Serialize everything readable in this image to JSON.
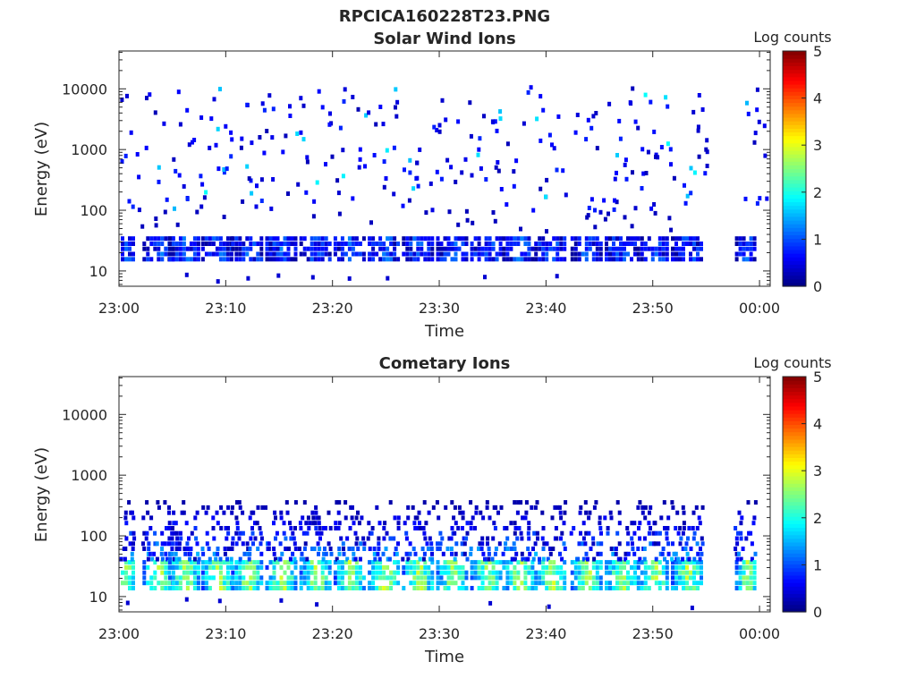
{
  "figure": {
    "title": "RPCICA160228T23.PNG"
  },
  "chart_data": [
    {
      "type": "heatmap",
      "title": "Solar Wind Ions",
      "xlabel": "Time",
      "ylabel": "Energy (eV)",
      "x_range": [
        "23:00",
        "00:01"
      ],
      "ylim": [
        5.6,
        42000
      ],
      "y_scale": "log",
      "x_ticks": [
        "23:00",
        "23:10",
        "23:20",
        "23:30",
        "23:40",
        "23:50",
        "00:00"
      ],
      "y_ticks": [
        {
          "value": 10,
          "label": "10"
        },
        {
          "value": 100,
          "label": "100"
        },
        {
          "value": 1000,
          "label": "1000"
        },
        {
          "value": 10000,
          "label": "10000"
        }
      ],
      "colorbar": {
        "label": "Log counts",
        "min": 0,
        "max": 5,
        "ticks": [
          "0",
          "1",
          "2",
          "3",
          "4",
          "5"
        ],
        "colormap": "jet"
      },
      "grid": false,
      "pattern": {
        "sweep_minutes": [
          0.5,
          3.7,
          6.1,
          9.2,
          12.0,
          15.2,
          18.4,
          21.6,
          24.8,
          28.0,
          31.2,
          34.4,
          37.4,
          40.4,
          43.8,
          47.0,
          50.0,
          53.2,
          58.7
        ],
        "low_energy_band_eV": [
          17,
          40
        ],
        "low_band_log_counts": 0.9,
        "sparse_high_energy_counts": true,
        "data_gap_minutes": [
          55.0,
          58.3
        ]
      }
    },
    {
      "type": "heatmap",
      "title": "Cometary Ions",
      "xlabel": "Time",
      "ylabel": "Energy (eV)",
      "x_range": [
        "23:00",
        "00:01"
      ],
      "ylim": [
        5.6,
        42000
      ],
      "y_scale": "log",
      "x_ticks": [
        "23:00",
        "23:10",
        "23:20",
        "23:30",
        "23:40",
        "23:50",
        "00:00"
      ],
      "y_ticks": [
        {
          "value": 10,
          "label": "10"
        },
        {
          "value": 100,
          "label": "100"
        },
        {
          "value": 1000,
          "label": "1000"
        },
        {
          "value": 10000,
          "label": "10000"
        }
      ],
      "colorbar": {
        "label": "Log counts",
        "min": 0,
        "max": 5,
        "ticks": [
          "0",
          "1",
          "2",
          "3",
          "4",
          "5"
        ],
        "colormap": "jet"
      },
      "grid": false,
      "pattern": {
        "sweep_minutes": [
          0.5,
          3.7,
          6.1,
          9.2,
          12.0,
          15.2,
          18.4,
          21.6,
          24.8,
          28.0,
          31.2,
          34.4,
          37.4,
          40.4,
          43.8,
          47.0,
          50.0,
          53.2,
          58.7
        ],
        "low_energy_band_eV": [
          15,
          45
        ],
        "low_band_log_counts": 2.7,
        "upper_tail_eV": [
          45,
          400
        ],
        "data_gap_minutes": [
          55.0,
          58.3
        ]
      }
    }
  ],
  "colors": {
    "background": "#ffffff",
    "axis": "#262626"
  }
}
